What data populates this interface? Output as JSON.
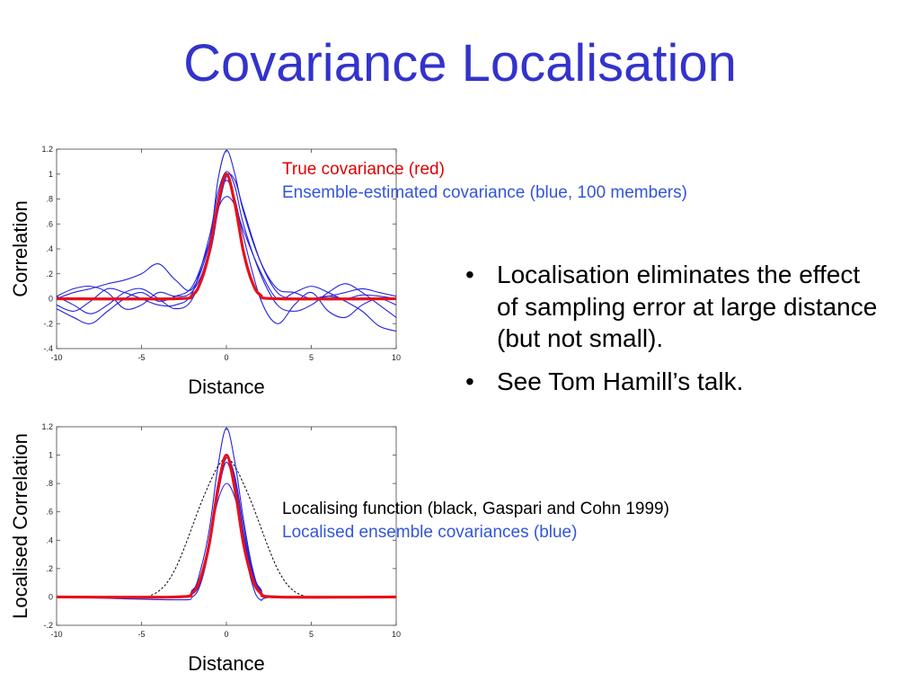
{
  "slide": {
    "title": "Covariance Localisation",
    "top_notes": {
      "line1": "True covariance (red)",
      "line2": "Ensemble-estimated covariance (blue, 100 members)"
    },
    "bottom_notes": {
      "line1": "Localising function (black, Gaspari and Cohn 1999)",
      "line2": "Localised ensemble covariances (blue)"
    },
    "bullets": [
      "Localisation eliminates the effect of sampling error at large distance (but not small).",
      "See Tom Hamill’s talk."
    ],
    "bullet_symbol": "•"
  },
  "colors": {
    "title": "#3333cc",
    "true_covariance": "#e8101a",
    "ensemble": "#2222dd",
    "localising_function": "#000000"
  },
  "chart_data": [
    {
      "type": "line",
      "xlabel": "Distance",
      "ylabel": "Correlation",
      "xlim": [
        -10,
        10
      ],
      "ylim": [
        -0.4,
        1.2
      ],
      "xticks": [
        -10,
        -5,
        0,
        5,
        10
      ],
      "yticks": [
        -0.4,
        -0.2,
        0,
        0.2,
        0.4,
        0.6,
        0.8,
        1,
        1.2
      ],
      "true_covariance": {
        "x": [
          -10,
          -3,
          -2,
          -1.5,
          -1,
          -0.5,
          0,
          0.5,
          1,
          1.5,
          2,
          3,
          10
        ],
        "y": [
          0,
          0,
          0.03,
          0.14,
          0.38,
          0.76,
          1.0,
          0.76,
          0.38,
          0.14,
          0.03,
          0,
          0
        ]
      },
      "ensemble_members": [
        {
          "x": [
            -10,
            -9,
            -8,
            -7,
            -6,
            -5,
            -4,
            -3,
            -2,
            -1,
            -0.5,
            0,
            0.5,
            1,
            2,
            3,
            4,
            5,
            6,
            7,
            8,
            9,
            10
          ],
          "y": [
            0,
            0.05,
            0.08,
            0.12,
            0.15,
            0.2,
            0.28,
            0.15,
            0.08,
            0.45,
            0.95,
            1.19,
            1.0,
            0.7,
            0.3,
            0.08,
            0.05,
            0,
            0.02,
            0.05,
            0.08,
            0.05,
            0.02
          ]
        },
        {
          "x": [
            -10,
            -9,
            -8,
            -7,
            -6,
            -5,
            -4,
            -3,
            -2,
            -1,
            -0.5,
            0,
            0.5,
            1,
            2,
            3,
            4,
            5,
            6,
            7,
            8,
            9,
            10
          ],
          "y": [
            -0.05,
            -0.1,
            -0.02,
            0.08,
            0.05,
            0.0,
            -0.05,
            -0.05,
            0.05,
            0.5,
            0.85,
            1.02,
            0.9,
            0.6,
            0.2,
            -0.05,
            -0.1,
            -0.05,
            0.05,
            0.12,
            0.05,
            -0.05,
            -0.15
          ]
        },
        {
          "x": [
            -10,
            -9,
            -8,
            -7,
            -6,
            -5,
            -4,
            -3,
            -2,
            -1,
            -0.5,
            0,
            0.5,
            1,
            2,
            3,
            4,
            5,
            6,
            7,
            8,
            9,
            10
          ],
          "y": [
            0.02,
            -0.05,
            -0.12,
            -0.05,
            0.05,
            0.08,
            0.0,
            -0.08,
            0.0,
            0.4,
            0.78,
            0.95,
            0.8,
            0.5,
            0.0,
            -0.2,
            -0.05,
            0.05,
            -0.1,
            -0.15,
            -0.05,
            0.0,
            -0.05
          ]
        },
        {
          "x": [
            -10,
            -9,
            -8,
            -7,
            -6,
            -5,
            -4,
            -3,
            -2,
            -1,
            -0.5,
            0,
            0.5,
            1,
            2,
            3,
            4,
            5,
            6,
            7,
            8,
            9,
            10
          ],
          "y": [
            -0.08,
            -0.15,
            -0.2,
            -0.1,
            0.0,
            0.05,
            -0.02,
            0.02,
            0.1,
            0.45,
            0.72,
            0.82,
            0.75,
            0.55,
            0.22,
            0.0,
            0.05,
            0.1,
            0.05,
            -0.02,
            -0.1,
            -0.22,
            -0.26
          ]
        },
        {
          "x": [
            -10,
            -9,
            -8,
            -7,
            -6,
            -5,
            -4,
            -3,
            -2,
            -1,
            -0.5,
            0,
            0.5,
            1,
            2,
            3,
            4,
            5,
            6,
            7,
            8,
            9,
            10
          ],
          "y": [
            0.02,
            0.08,
            0.1,
            0.05,
            -0.08,
            -0.05,
            0.05,
            0.02,
            0.06,
            0.35,
            0.7,
            0.98,
            0.95,
            0.72,
            0.3,
            0.05,
            0.0,
            0.0,
            0.02,
            0.0,
            0.03,
            0.02,
            0.0
          ]
        }
      ]
    },
    {
      "type": "line",
      "xlabel": "Distance",
      "ylabel": "Localised Correlation",
      "xlim": [
        -10,
        10
      ],
      "ylim": [
        -0.2,
        1.2
      ],
      "xticks": [
        -10,
        -5,
        0,
        5,
        10
      ],
      "yticks": [
        -0.2,
        0,
        0.2,
        0.4,
        0.6,
        0.8,
        1,
        1.2
      ],
      "true_covariance": {
        "x": [
          -10,
          -3,
          -2,
          -1.5,
          -1,
          -0.5,
          0,
          0.5,
          1,
          1.5,
          2,
          3,
          10
        ],
        "y": [
          0,
          0,
          0.03,
          0.14,
          0.38,
          0.76,
          1.0,
          0.76,
          0.38,
          0.14,
          0.03,
          0,
          0
        ]
      },
      "localising_function": {
        "x": [
          -10,
          -5,
          -4.5,
          -4,
          -3.5,
          -3,
          -2.5,
          -2,
          -1.5,
          -1,
          -0.5,
          0,
          0.5,
          1,
          1.5,
          2,
          2.5,
          3,
          3.5,
          4,
          4.5,
          5,
          10
        ],
        "y": [
          0,
          0,
          0.01,
          0.04,
          0.1,
          0.2,
          0.34,
          0.5,
          0.66,
          0.8,
          0.92,
          0.98,
          0.92,
          0.8,
          0.66,
          0.5,
          0.34,
          0.2,
          0.1,
          0.04,
          0.01,
          0,
          0
        ]
      },
      "ensemble_members": [
        {
          "x": [
            -10,
            -3,
            -2,
            -1.5,
            -1,
            -0.5,
            0,
            0.5,
            1,
            1.5,
            2,
            3,
            10
          ],
          "y": [
            0,
            0,
            0.04,
            0.2,
            0.48,
            0.92,
            1.19,
            0.95,
            0.55,
            0.22,
            0.05,
            0,
            0
          ]
        },
        {
          "x": [
            -10,
            -3,
            -2,
            -1.5,
            -1,
            -0.5,
            0,
            0.5,
            1,
            1.5,
            2,
            3,
            10
          ],
          "y": [
            0,
            0,
            0.02,
            0.12,
            0.42,
            0.8,
            1.0,
            0.82,
            0.45,
            0.15,
            0.02,
            0,
            0
          ]
        },
        {
          "x": [
            -10,
            -3,
            -2,
            -1.5,
            -1,
            -0.5,
            0,
            0.5,
            1,
            1.5,
            2,
            3,
            10
          ],
          "y": [
            0,
            -0.02,
            0.0,
            0.1,
            0.35,
            0.72,
            0.95,
            0.75,
            0.38,
            0.1,
            -0.02,
            0,
            0
          ]
        },
        {
          "x": [
            -10,
            -3,
            -2,
            -1.5,
            -1,
            -0.5,
            0,
            0.5,
            1,
            1.5,
            2,
            3,
            10
          ],
          "y": [
            0,
            0.0,
            0.05,
            0.15,
            0.4,
            0.68,
            0.8,
            0.7,
            0.45,
            0.18,
            0.06,
            0,
            0
          ]
        },
        {
          "x": [
            -10,
            -3,
            -2,
            -1.5,
            -1,
            -0.5,
            0,
            0.5,
            1,
            1.5,
            2,
            3,
            10
          ],
          "y": [
            0,
            0,
            0.03,
            0.12,
            0.36,
            0.74,
            0.98,
            0.85,
            0.5,
            0.2,
            0.04,
            0,
            0
          ]
        }
      ]
    }
  ]
}
